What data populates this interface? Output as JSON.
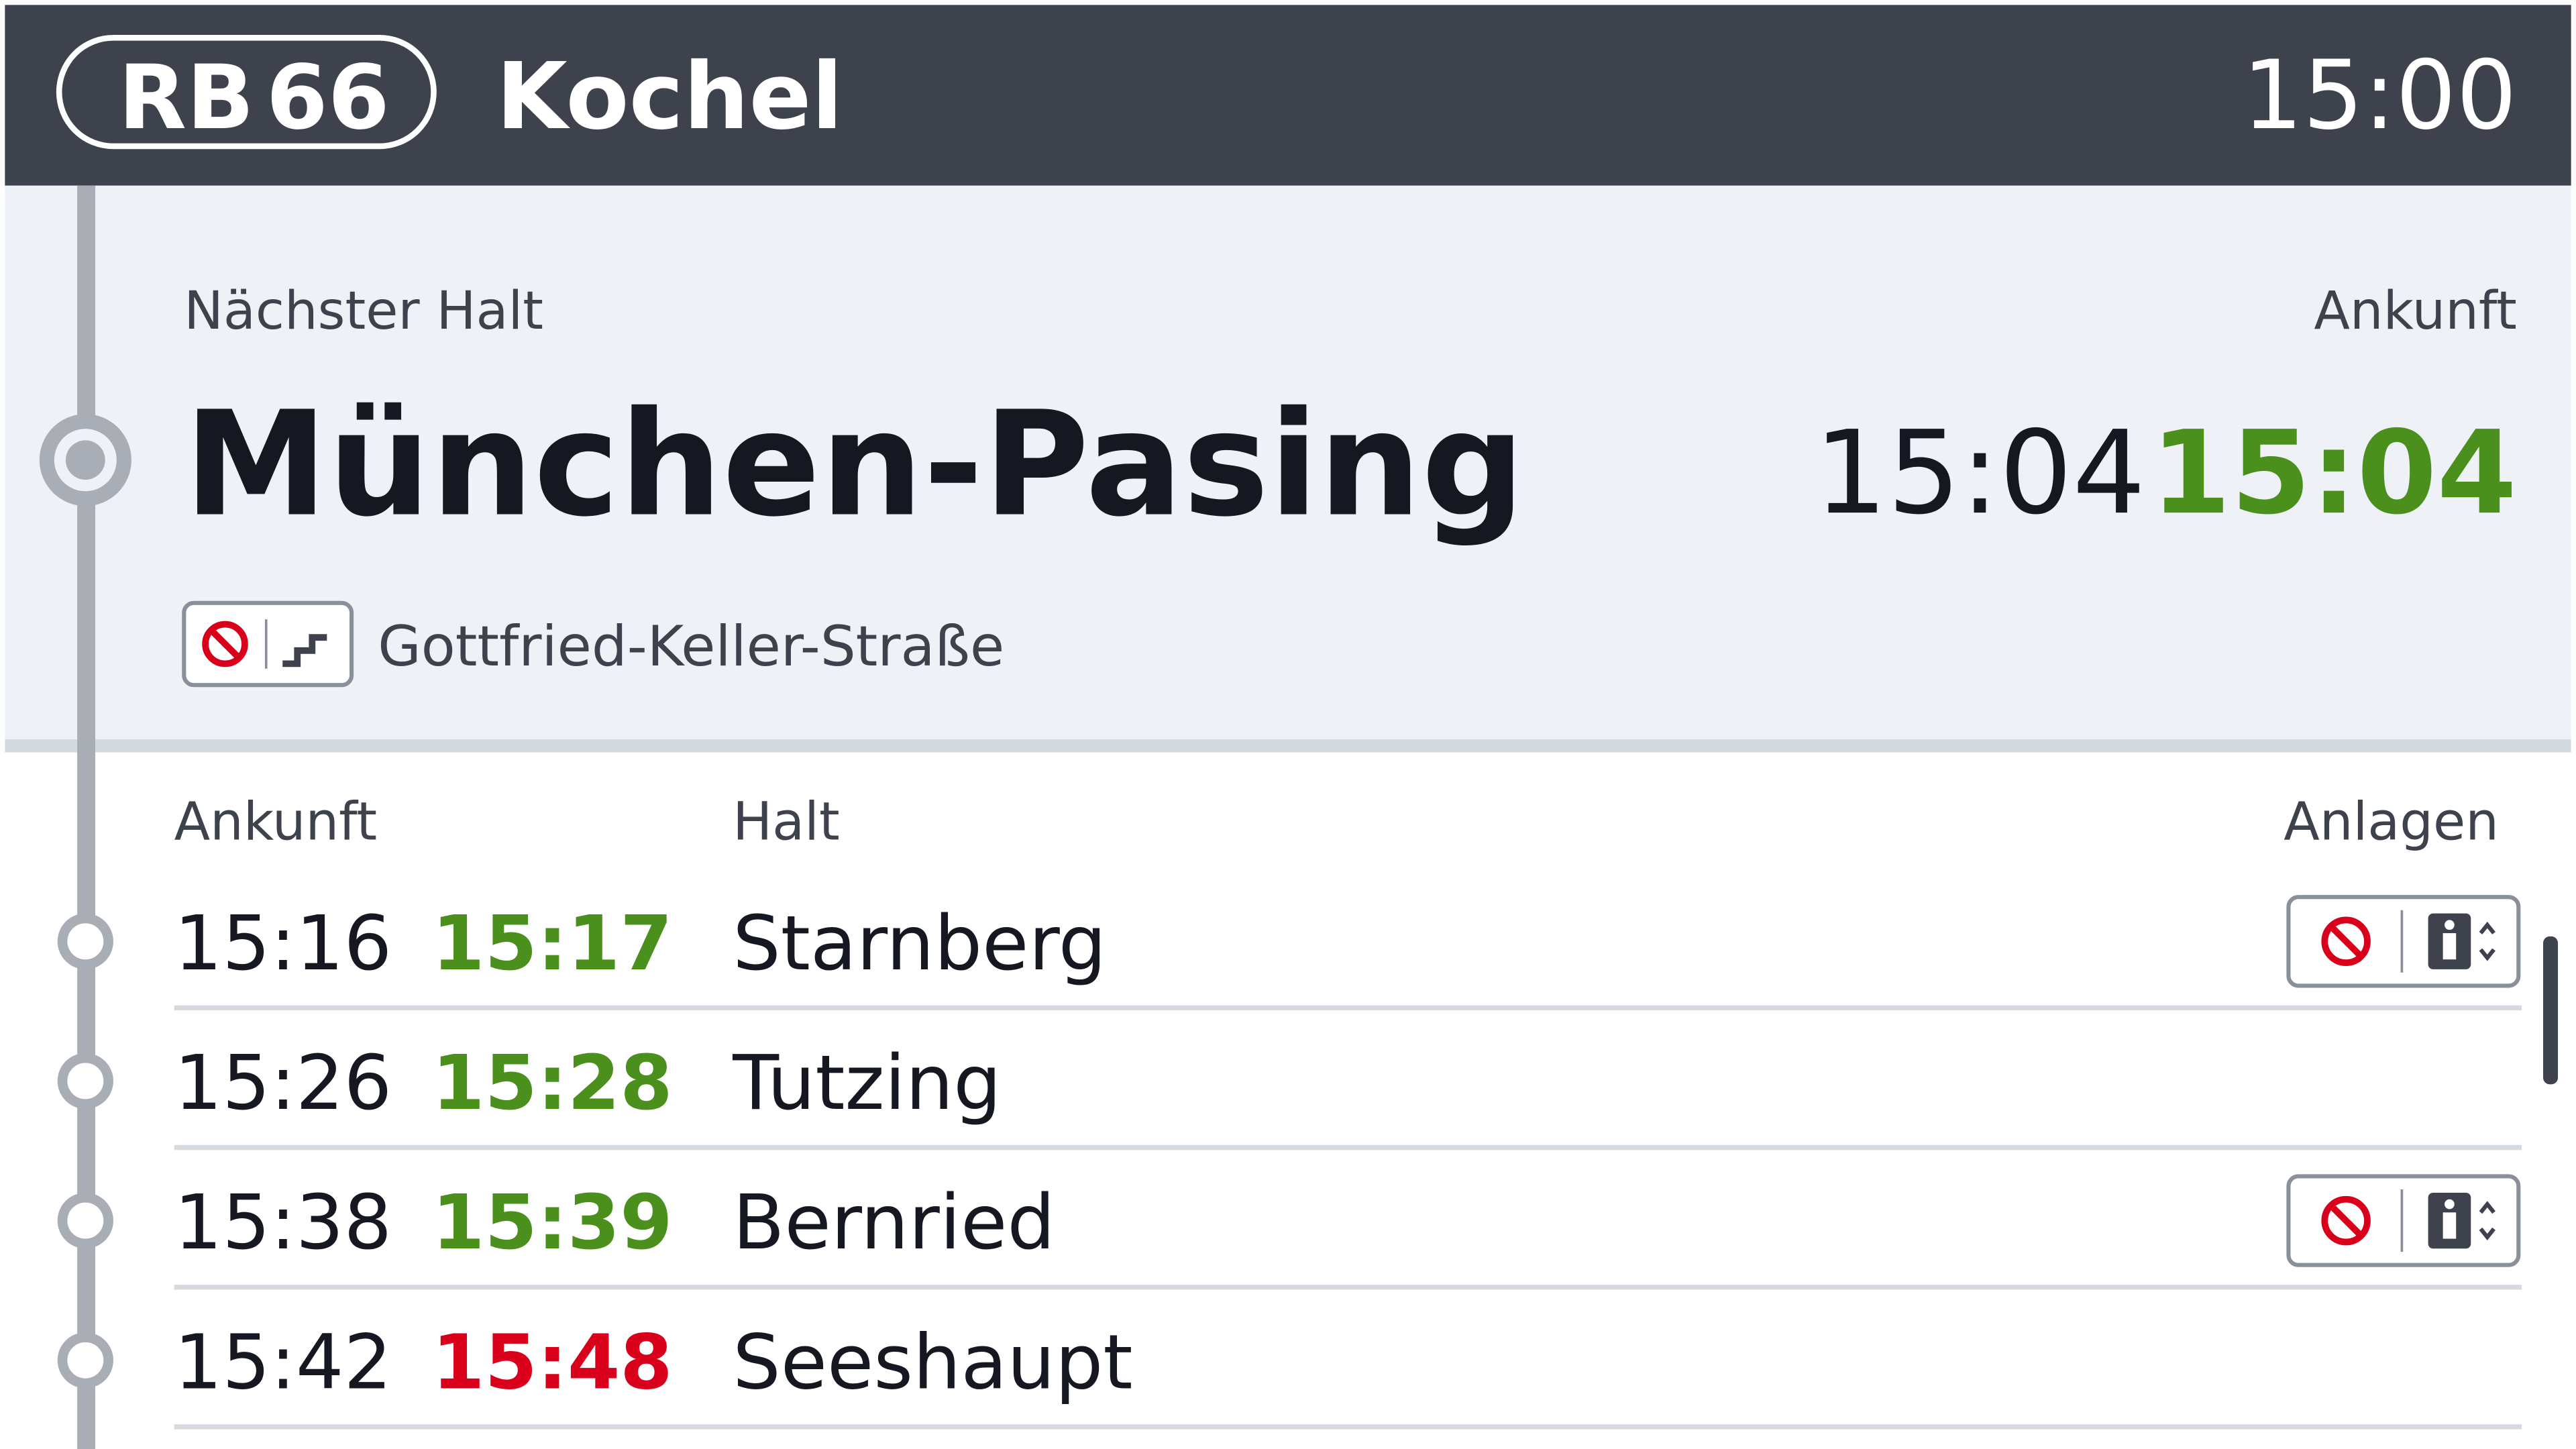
{
  "header": {
    "line_type": "RB",
    "line_number": "66",
    "destination": "Kochel",
    "time": "15:00"
  },
  "next_stop": {
    "label": "Nächster Halt",
    "arrival_label": "Ankunft",
    "name": "München-Pasing",
    "scheduled": "15:04",
    "actual": "15:04",
    "actual_color": "#4b8f1c",
    "exit": "Gottfried-Keller-Straße"
  },
  "table": {
    "headers": [
      "Ankunft",
      "Halt",
      "Anlagen"
    ],
    "rows": [
      {
        "scheduled": "15:16",
        "actual": "15:17",
        "actual_color": "#4b8f1c",
        "name": "Starnberg"
      },
      {
        "scheduled": "15:26",
        "actual": "15:28",
        "actual_color": "#4b8f1c",
        "name": "Tutzing"
      },
      {
        "scheduled": "15:38",
        "actual": "15:39",
        "actual_color": "#4b8f1c",
        "name": "Bernried"
      },
      {
        "scheduled": "15:42",
        "actual": "15:48",
        "actual_color": "#d9001b",
        "name": "Seeshaupt"
      }
    ]
  }
}
